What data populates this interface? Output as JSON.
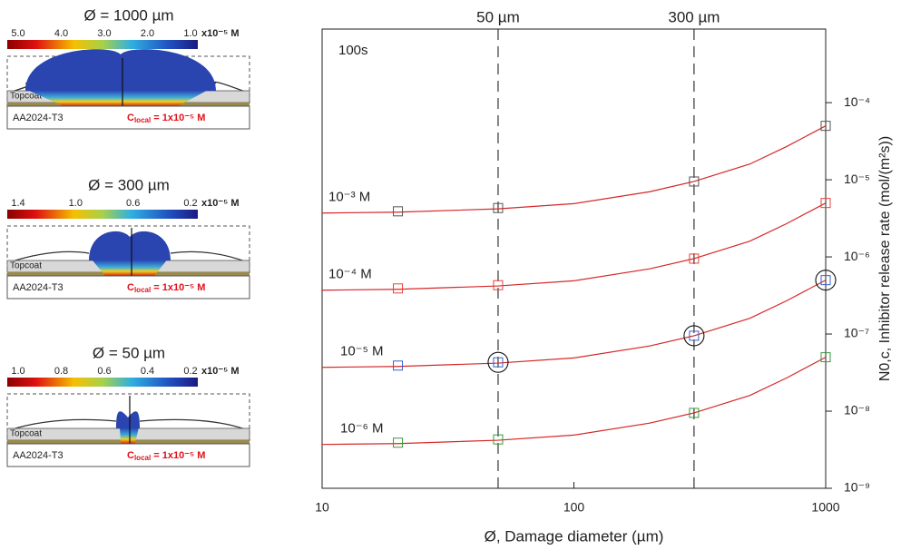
{
  "panels": [
    {
      "title": "Ø = 1000 µm",
      "colorbar_ticks": [
        "5.0",
        "4.0",
        "3.0",
        "2.0",
        "1.0"
      ],
      "unit": "x10⁻⁵ M",
      "topcoat": "Topcoat",
      "substrate": "AA2024-T3",
      "annotation_symbol": "C",
      "annotation_subscript": "local",
      "annotation_value": " = 1x10⁻⁵ M"
    },
    {
      "title": "Ø = 300 µm",
      "colorbar_ticks": [
        "1.4",
        "1.0",
        "0.6",
        "0.2"
      ],
      "unit": "x10⁻⁵ M",
      "topcoat": "Topcoat",
      "substrate": "AA2024-T3",
      "annotation_symbol": "C",
      "annotation_subscript": "local",
      "annotation_value": " = 1x10⁻⁵ M"
    },
    {
      "title": "Ø = 50 µm",
      "colorbar_ticks": [
        "1.0",
        "0.8",
        "0.6",
        "0.4",
        "0.2"
      ],
      "unit": "x10⁻⁵ M",
      "topcoat": "Topcoat",
      "substrate": "AA2024-T3",
      "annotation_symbol": "C",
      "annotation_subscript": "local",
      "annotation_value": " = 1x10⁻⁵ M"
    }
  ],
  "chart_data": {
    "type": "scatter",
    "annotation": "100s",
    "x_label": "Ø, Damage diameter (µm)",
    "y_label": "N0,c, Inhibitor release rate (mol/(m²s))",
    "x_log": true,
    "y_log": true,
    "xlim": [
      10,
      1000
    ],
    "xticks": [
      10,
      100,
      1000
    ],
    "ylim": [
      1e-09,
      0.0009
    ],
    "yticks": [
      {
        "value": 1e-09,
        "label": "10⁻⁹"
      },
      {
        "value": 1e-08,
        "label": "10⁻⁸"
      },
      {
        "value": 1e-07,
        "label": "10⁻⁷"
      },
      {
        "value": 1e-06,
        "label": "10⁻⁶"
      },
      {
        "value": 1e-05,
        "label": "10⁻⁵"
      },
      {
        "value": 0.0001,
        "label": "10⁻⁴"
      }
    ],
    "vlines": [
      {
        "value": 50,
        "label": "50 µm"
      },
      {
        "value": 300,
        "label": "300 µm"
      }
    ],
    "fit_color": "#d62728",
    "x": [
      20,
      50,
      300,
      1000
    ],
    "fit_x": [
      10,
      20,
      50,
      100,
      200,
      300,
      500,
      700,
      1000
    ],
    "series": [
      {
        "name": "10⁻³ M",
        "color": "#555555",
        "values": [
          3.9e-06,
          4.3e-06,
          9.5e-06,
          5e-05
        ],
        "fit": [
          3.7e-06,
          3.8e-06,
          4.2e-06,
          4.9e-06,
          7e-06,
          9.5e-06,
          1.6e-05,
          2.7e-05,
          5e-05
        ]
      },
      {
        "name": "10⁻⁴ M",
        "color": "#e8413c",
        "values": [
          3.9e-07,
          4.3e-07,
          9.5e-07,
          5e-06
        ],
        "fit": [
          3.7e-07,
          3.8e-07,
          4.2e-07,
          4.9e-07,
          7e-07,
          9.5e-07,
          1.6e-06,
          2.7e-06,
          5e-06
        ]
      },
      {
        "name": "10⁻⁵ M",
        "color": "#3a5fcd",
        "values": [
          3.9e-08,
          4.3e-08,
          9.5e-08,
          5e-07
        ],
        "fit": [
          3.7e-08,
          3.8e-08,
          4.2e-08,
          4.9e-08,
          7e-08,
          9.5e-08,
          1.6e-07,
          2.7e-07,
          5e-07
        ]
      },
      {
        "name": "10⁻⁶ M",
        "color": "#3a9a3a",
        "values": [
          3.9e-09,
          4.3e-09,
          9.5e-09,
          5e-08
        ],
        "fit": [
          3.7e-09,
          3.8e-09,
          4.2e-09,
          4.9e-09,
          7e-09,
          9.5e-09,
          1.6e-08,
          2.7e-08,
          5e-08
        ]
      }
    ],
    "circled": [
      {
        "x": 50,
        "y": 4.3e-08
      },
      {
        "x": 300,
        "y": 9.5e-08
      },
      {
        "x": 1000,
        "y": 5e-07
      }
    ]
  }
}
